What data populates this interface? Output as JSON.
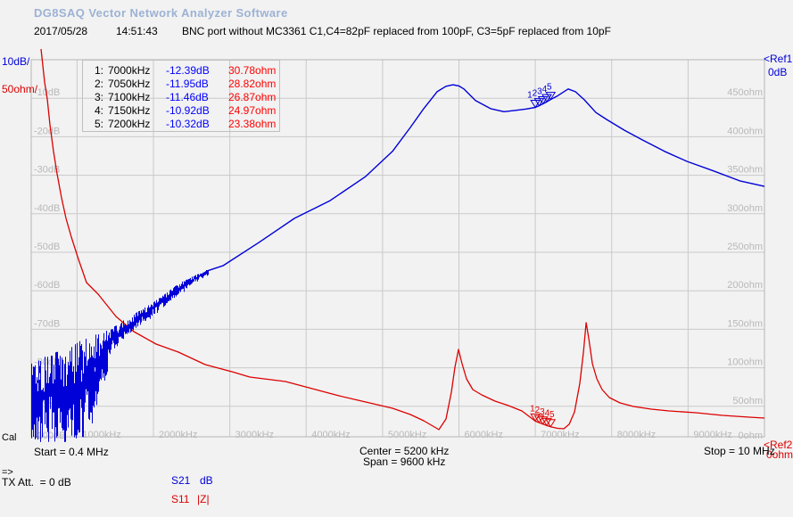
{
  "window": {
    "title": "DG8SAQ Vector Network Analyzer Software"
  },
  "header": {
    "date": "2017/05/28",
    "time": "14:51:43",
    "description": "BNC port without MC3361 C1,C4=82pF replaced from 100pF, C3=5pF replaced from 10pF"
  },
  "colors": {
    "background": "#f2f2f2",
    "grid": "#c9c9c9",
    "plot_border": "#b5b5b5",
    "tick_text": "#b8b8b8",
    "trace_blue": "#0000d8",
    "trace_red": "#dd0000",
    "marker_db_text": "#0000ff",
    "marker_ohm_text": "#ff0000",
    "title_blue": "#9cb2d4"
  },
  "left_axis": {
    "scale_db": "10dB/",
    "scale_ohm": "50ohm/",
    "db_ticks": [
      "-10dB",
      "-20dB",
      "-30dB",
      "-40dB",
      "-50dB",
      "-60dB",
      "-70dB",
      "-80dB",
      "-90dB",
      "-100dB"
    ]
  },
  "right_axis": {
    "ref1_label": "<Ref1",
    "ref1_value": "0dB",
    "ref2_label": "<Ref2",
    "ref2_value": "0ohm",
    "ohm_ticks": [
      "450ohm",
      "400ohm",
      "350ohm",
      "300ohm",
      "250ohm",
      "200ohm",
      "150ohm",
      "100ohm",
      "50ohm",
      "0ohm"
    ]
  },
  "x_axis": {
    "ticks": [
      "1000kHz",
      "2000kHz",
      "3000kHz",
      "4000kHz",
      "5000kHz",
      "6000kHz",
      "7000kHz",
      "8000kHz",
      "9000kHz"
    ]
  },
  "marker_table": {
    "rows": [
      {
        "index": "1:",
        "freq": "7000kHz",
        "db": "-12.39dB",
        "ohm": "30.78ohm"
      },
      {
        "index": "2:",
        "freq": "7050kHz",
        "db": "-11.95dB",
        "ohm": "28.82ohm"
      },
      {
        "index": "3:",
        "freq": "7100kHz",
        "db": "-11.46dB",
        "ohm": "26.87ohm"
      },
      {
        "index": "4:",
        "freq": "7150kHz",
        "db": "-10.92dB",
        "ohm": "24.97ohm"
      },
      {
        "index": "5:",
        "freq": "7200kHz",
        "db": "-10.32dB",
        "ohm": "23.38ohm"
      }
    ]
  },
  "footer": {
    "cal": "Cal",
    "start": "Start = 0.4 MHz",
    "center": "Center = 5200 kHz",
    "span": "Span = 9600 kHz",
    "stop": "Stop = 10 MHz",
    "arrow": "=>",
    "tx_att": "TX Att.  = 0 dB",
    "s21": "S21",
    "s21_unit": "dB",
    "s11": "S11",
    "s11_unit": "|Z|"
  },
  "chart_data": {
    "type": "line",
    "title": "",
    "x_range_khz": [
      400,
      10000
    ],
    "grid_khz": [
      1000,
      2000,
      3000,
      4000,
      5000,
      6000,
      7000,
      8000,
      9000
    ],
    "db_gridlines": [
      -10,
      -20,
      -30,
      -40,
      -50,
      -60,
      -70,
      -80,
      -90
    ],
    "db_axis": {
      "ref_db": 0,
      "db_per_div": 10,
      "divisions": 10
    },
    "ohm_axis": {
      "ref_ohm": 0,
      "ohm_per_div": 50,
      "divisions": 10
    },
    "series": [
      {
        "name": "S21",
        "unit": "dB",
        "color": "#0000d8",
        "points": [
          [
            2712,
            -54.8
          ],
          [
            2911,
            -53.5
          ],
          [
            3378,
            -47.5
          ],
          [
            3845,
            -41.2
          ],
          [
            4312,
            -36.6
          ],
          [
            4780,
            -30.3
          ],
          [
            5130,
            -23.8
          ],
          [
            5363,
            -17.6
          ],
          [
            5539,
            -12.7
          ],
          [
            5714,
            -8.3
          ],
          [
            5830,
            -6.9
          ],
          [
            5924,
            -6.5
          ],
          [
            6000,
            -6.8
          ],
          [
            6064,
            -7.6
          ],
          [
            6216,
            -10.6
          ],
          [
            6415,
            -12.7
          ],
          [
            6590,
            -13.5
          ],
          [
            6765,
            -13.1
          ],
          [
            6880,
            -12.8
          ],
          [
            7000,
            -12.39
          ],
          [
            7050,
            -11.95
          ],
          [
            7100,
            -11.46
          ],
          [
            7150,
            -10.92
          ],
          [
            7200,
            -10.32
          ],
          [
            7291,
            -9.4
          ],
          [
            7431,
            -7.6
          ],
          [
            7525,
            -8.3
          ],
          [
            7641,
            -10.4
          ],
          [
            7793,
            -13.7
          ],
          [
            7933,
            -15.5
          ],
          [
            8167,
            -18.3
          ],
          [
            8400,
            -20.8
          ],
          [
            8692,
            -23.8
          ],
          [
            8984,
            -26.4
          ],
          [
            9335,
            -28.9
          ],
          [
            9685,
            -31.5
          ],
          [
            10000,
            -32.9
          ]
        ]
      },
      {
        "name": "S11",
        "unit": "ohm",
        "color": "#dd0000",
        "points": [
          [
            528,
            513.9
          ],
          [
            575,
            471
          ],
          [
            610,
            449
          ],
          [
            645,
            415.5
          ],
          [
            692,
            380.8
          ],
          [
            739,
            351.9
          ],
          [
            797,
            320.6
          ],
          [
            855,
            294
          ],
          [
            926,
            269.7
          ],
          [
            1019,
            240.7
          ],
          [
            1124,
            210.6
          ],
          [
            1276,
            195.6
          ],
          [
            1509,
            166.7
          ],
          [
            1743,
            147
          ],
          [
            2035,
            130.8
          ],
          [
            2327,
            120.4
          ],
          [
            2677,
            104.2
          ],
          [
            3028,
            94.9
          ],
          [
            3262,
            88
          ],
          [
            3728,
            82.2
          ],
          [
            4079,
            72.9
          ],
          [
            4429,
            63.7
          ],
          [
            4779,
            55.6
          ],
          [
            5130,
            47.5
          ],
          [
            5363,
            39.4
          ],
          [
            5539,
            31.3
          ],
          [
            5679,
            23.1
          ],
          [
            5737,
            19.7
          ],
          [
            5831,
            33.6
          ],
          [
            5901,
            68.3
          ],
          [
            5947,
            100.7
          ],
          [
            5994,
            123.8
          ],
          [
            6041,
            105.3
          ],
          [
            6099,
            85.6
          ],
          [
            6181,
            71.8
          ],
          [
            6298,
            64.8
          ],
          [
            6473,
            56.7
          ],
          [
            6648,
            50.9
          ],
          [
            6823,
            44
          ],
          [
            7000,
            30.78
          ],
          [
            7050,
            28.82
          ],
          [
            7100,
            26.87
          ],
          [
            7150,
            24.97
          ],
          [
            7200,
            23.38
          ],
          [
            7291,
            21.4
          ],
          [
            7373,
            20.8
          ],
          [
            7443,
            26.6
          ],
          [
            7513,
            42.8
          ],
          [
            7583,
            79.9
          ],
          [
            7630,
            120.4
          ],
          [
            7665,
            158.6
          ],
          [
            7700,
            137.7
          ],
          [
            7747,
            105.3
          ],
          [
            7805,
            85.6
          ],
          [
            7875,
            71.8
          ],
          [
            7969,
            61.3
          ],
          [
            8109,
            54.4
          ],
          [
            8284,
            49.8
          ],
          [
            8518,
            46.3
          ],
          [
            8751,
            44
          ],
          [
            9102,
            41.7
          ],
          [
            9452,
            38.2
          ],
          [
            9802,
            35.9
          ],
          [
            10000,
            34.7
          ]
        ]
      }
    ],
    "noise": {
      "seed": 7,
      "khz_range": [
        400,
        2712
      ],
      "envelope": [
        [
          400,
          -78.9,
          -98.4
        ],
        [
          575,
          -77.1,
          -98.4
        ],
        [
          809,
          -75.2,
          -98.4
        ],
        [
          1042,
          -72.9,
          -97.5
        ],
        [
          1218,
          -71.5,
          -93.3
        ],
        [
          1334,
          -70.6,
          -86.3
        ],
        [
          1451,
          -69.7,
          -75.9
        ],
        [
          1626,
          -67.4,
          -72.0
        ],
        [
          1860,
          -64.6,
          -68.3
        ],
        [
          2094,
          -61.6,
          -64.8
        ],
        [
          2327,
          -58.1,
          -60.9
        ],
        [
          2502,
          -56.3,
          -58.1
        ],
        [
          2712,
          -54.6,
          -55.6
        ]
      ]
    },
    "markers": {
      "labels": [
        "1",
        "2",
        "3",
        "4",
        "5"
      ],
      "freqs_khz": [
        7000,
        7050,
        7100,
        7150,
        7200
      ],
      "s21_db": [
        -12.39,
        -11.95,
        -11.46,
        -10.92,
        -10.32
      ],
      "s11_ohm": [
        30.78,
        28.82,
        26.87,
        24.97,
        23.38
      ]
    }
  }
}
